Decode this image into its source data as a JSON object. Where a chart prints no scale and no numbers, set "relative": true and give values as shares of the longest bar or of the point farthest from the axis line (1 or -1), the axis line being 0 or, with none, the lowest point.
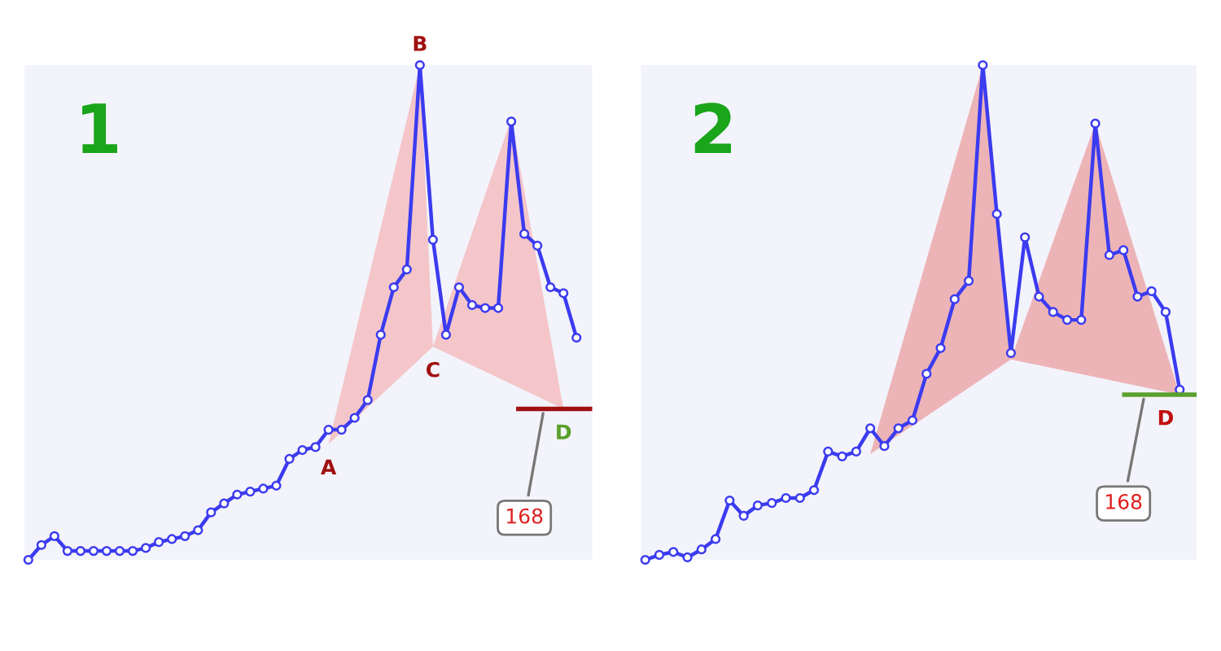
{
  "chart_data": [
    {
      "type": "line",
      "title": "1",
      "relative": true,
      "categories": [
        null,
        null,
        null,
        null,
        null,
        null,
        null,
        null,
        null,
        null,
        null,
        null,
        null,
        null,
        null,
        null,
        null,
        null,
        null,
        null,
        null,
        null,
        null,
        null,
        null,
        null,
        null,
        null,
        null,
        null,
        null,
        null,
        null,
        null,
        null,
        null,
        null,
        null,
        null,
        null,
        null,
        null,
        null
      ],
      "series": [
        {
          "color": "#3b3bf0",
          "marker": "circle",
          "values": [
            0,
            0.03,
            0.048,
            0.018,
            0.018,
            0.018,
            0.018,
            0.018,
            0.018,
            0.024,
            0.036,
            0.042,
            0.048,
            0.06,
            0.096,
            0.114,
            0.132,
            0.138,
            0.144,
            0.15,
            0.204,
            0.222,
            0.228,
            0.263,
            0.263,
            0.287,
            0.323,
            0.455,
            0.551,
            0.587,
            1,
            0.647,
            0.455,
            0.551,
            0.515,
            0.509,
            0.509,
            0.886,
            0.659,
            0.635,
            0.551,
            0.539,
            0.449
          ]
        },
        {
          "type": "area",
          "color": "#f4a0a0",
          "values": [
            null,
            null,
            null,
            null,
            null,
            null,
            null,
            null,
            null,
            null,
            null,
            null,
            null,
            null,
            null,
            null,
            null,
            null,
            null,
            null,
            null,
            null,
            null,
            0.234,
            null,
            null,
            null,
            null,
            null,
            null,
            1,
            0.431,
            null,
            null,
            null,
            null,
            null,
            0.892,
            null,
            null,
            null,
            0.305,
            null
          ],
          "marker": "none"
        }
      ],
      "annotations": [
        "168",
        "A",
        "B",
        "C",
        "D"
      ],
      "ref_lines": [
        {
          "axis": "y",
          "value": 0.305,
          "color": "#a01010"
        }
      ]
    },
    {
      "type": "line",
      "title": "2",
      "relative": true,
      "categories": [
        null,
        null,
        null,
        null,
        null,
        null,
        null,
        null,
        null,
        null,
        null,
        null,
        null,
        null,
        null,
        null,
        null,
        null,
        null,
        null,
        null,
        null,
        null,
        null,
        null,
        null,
        null,
        null,
        null,
        null,
        null,
        null,
        null,
        null,
        null,
        null,
        null,
        null,
        null
      ],
      "series": [
        {
          "color": "#3b3bf0",
          "marker": "circle",
          "values": [
            0,
            0.01,
            0.016,
            0.005,
            0.021,
            0.042,
            0.12,
            0.089,
            0.11,
            0.115,
            0.125,
            0.125,
            0.141,
            0.219,
            0.209,
            0.219,
            0.266,
            0.23,
            0.266,
            0.282,
            0.376,
            0.428,
            0.527,
            0.564,
            1,
            0.699,
            0.418,
            0.652,
            0.532,
            0.501,
            0.485,
            0.485,
            0.882,
            0.616,
            0.626,
            0.532,
            0.543,
            0.501,
            0.344
          ]
        },
        {
          "type": "area",
          "color": "#e88080",
          "values": [
            null,
            null,
            null,
            null,
            null,
            null,
            null,
            null,
            null,
            null,
            null,
            null,
            null,
            null,
            null,
            null,
            0.214,
            null,
            null,
            null,
            null,
            null,
            null,
            null,
            1,
            null,
            0.405,
            null,
            null,
            null,
            null,
            null,
            0.882,
            null,
            null,
            null,
            null,
            null,
            0.334
          ],
          "marker": "none"
        }
      ],
      "annotations": [
        "168",
        "D"
      ],
      "ref_lines": [
        {
          "axis": "y",
          "value": 0.334,
          "color": "#5aa02c"
        }
      ]
    }
  ]
}
